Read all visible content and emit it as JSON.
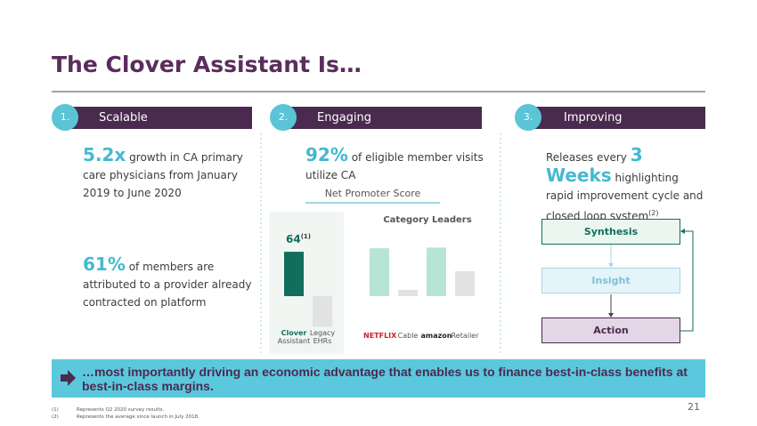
{
  "title": "The Clover Assistant Is…",
  "page_number": "21",
  "columns": [
    {
      "number": "1.",
      "heading": "Scalable",
      "stats": [
        {
          "figure": "5.2x",
          "text": "growth in CA primary care physicians from January 2019 to June 2020"
        },
        {
          "figure": "61%",
          "text": "of members are attributed to a provider already contracted on platform"
        }
      ]
    },
    {
      "number": "2.",
      "heading": "Engaging",
      "stats": [
        {
          "figure": "92%",
          "text": "of eligible member visits utilize CA"
        }
      ]
    },
    {
      "number": "3.",
      "heading": "Improving",
      "lead": "Releases every",
      "figure": "3",
      "figure_unit": "Weeks",
      "text": "highlighting rapid improvement cycle and closed loop system",
      "note": "(2)"
    }
  ],
  "nps": {
    "title": "Net Promoter Score",
    "value_label": "64",
    "note": "(1)",
    "own": [
      {
        "name": "Clover",
        "sub": "Assistant",
        "value": 64,
        "color": "#126e5c"
      },
      {
        "name": "Legacy",
        "sub": "EHRs",
        "value": -44,
        "color": "#e2e2e2"
      }
    ],
    "leaders_title": "Category Leaders",
    "leaders": [
      {
        "name": "NETFLIX",
        "value": 69,
        "color": "#b7e4d4"
      },
      {
        "name": "Cable",
        "value": 9,
        "color": "#e2e2e2"
      },
      {
        "name": "amazon",
        "value": 70,
        "color": "#b7e4d4"
      },
      {
        "name": "Retailer",
        "value": 36,
        "color": "#e2e2e2"
      }
    ]
  },
  "loop": [
    "Synthesis",
    "Insight",
    "Action"
  ],
  "banner": "…most importantly driving an economic advantage that enables us to finance best-in-class benefits at best-in-class margins.",
  "footnotes": [
    {
      "mark": "(1)",
      "text": "Represents Q2 2020 survey results."
    },
    {
      "mark": "(2)",
      "text": "Represents the average since launch in July 2018."
    }
  ]
}
